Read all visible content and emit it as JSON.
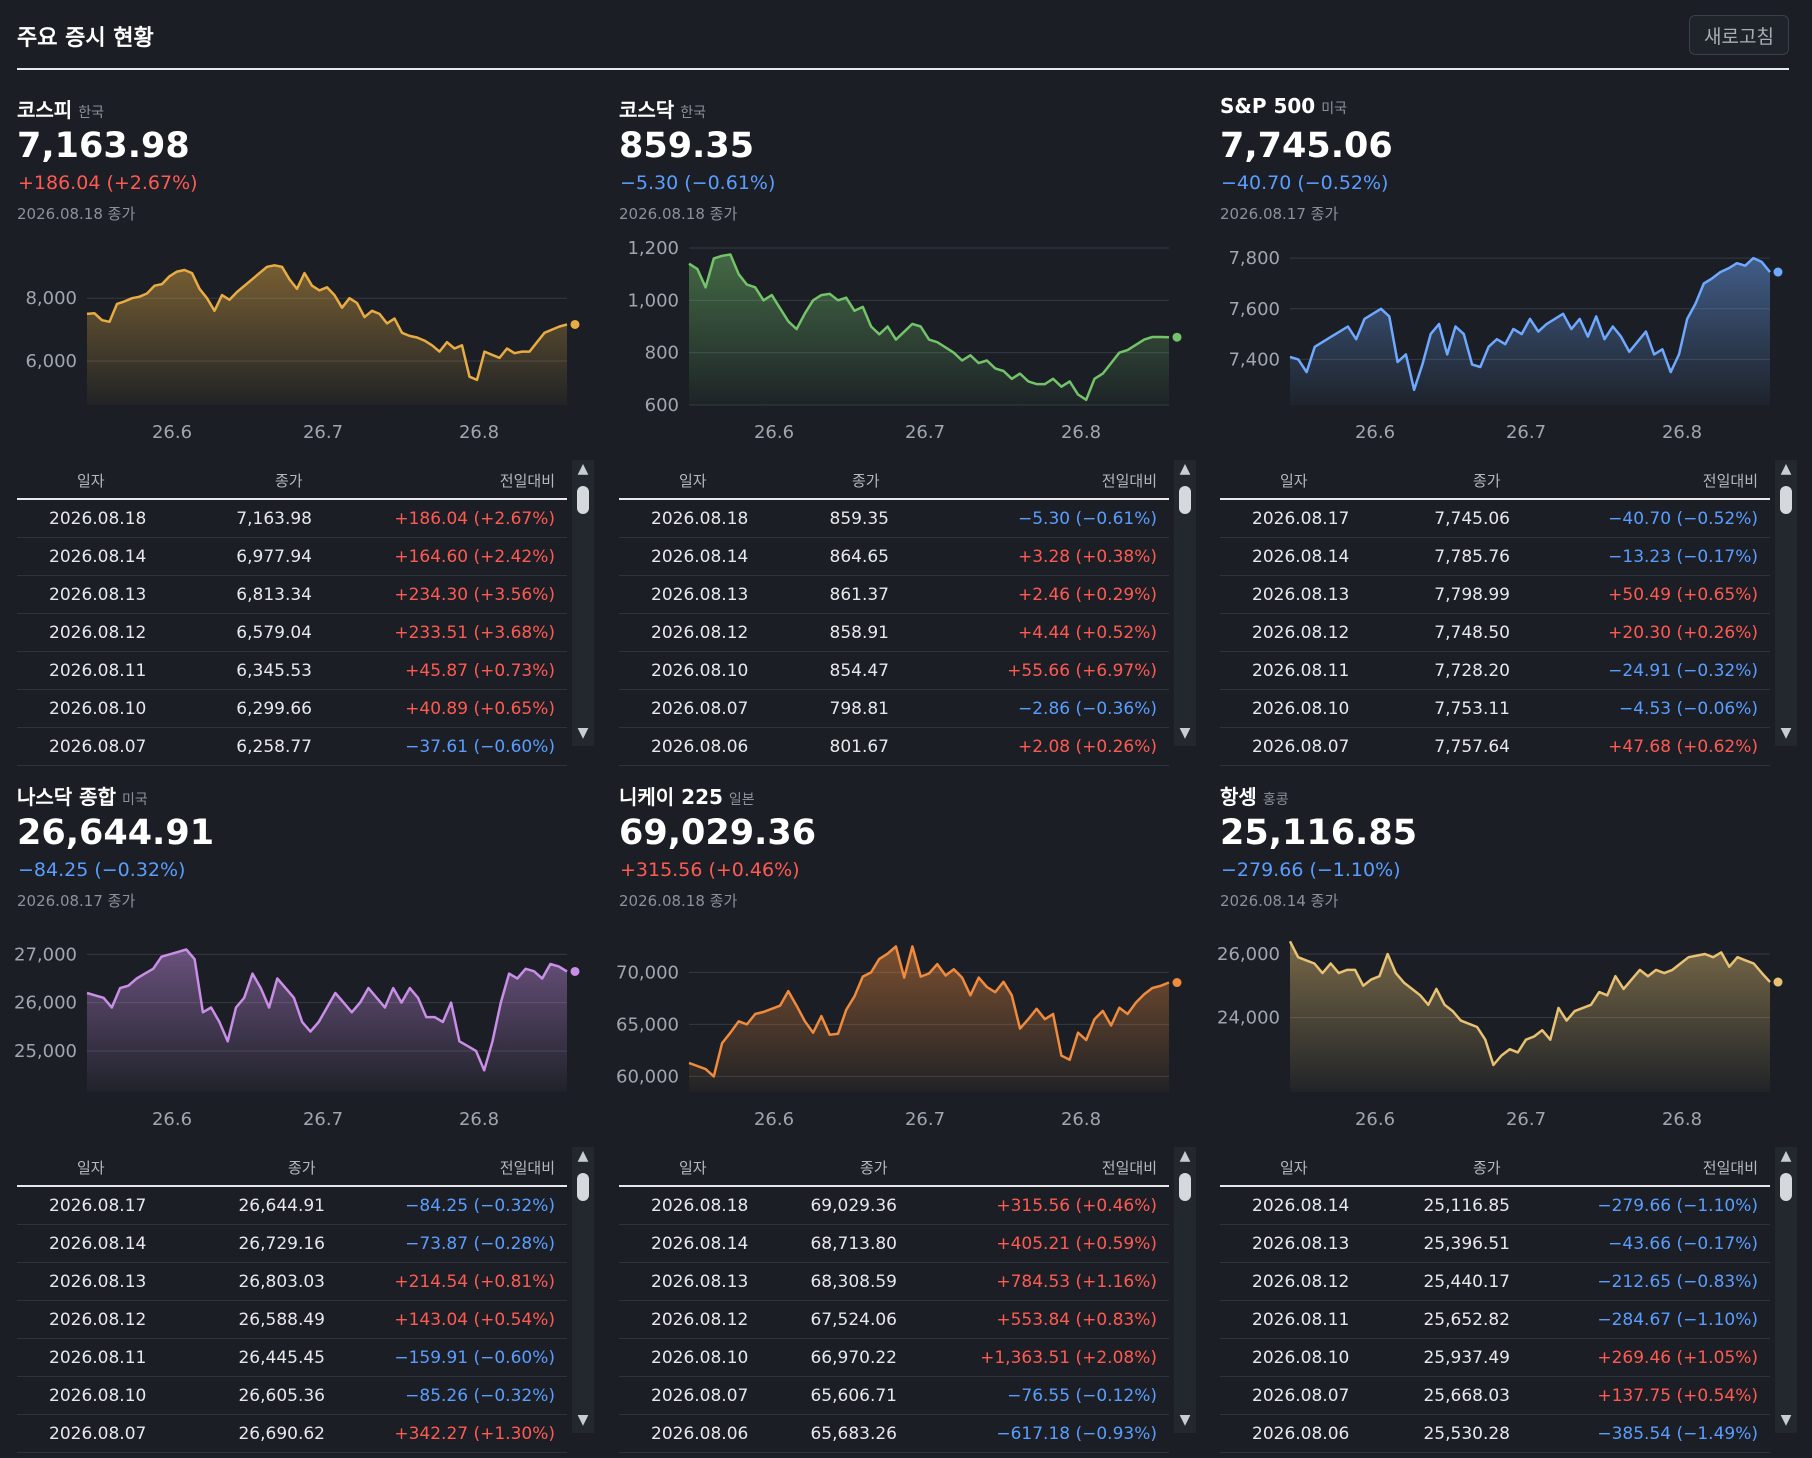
{
  "header": {
    "title": "주요 증시 현황",
    "refresh_label": "새로고침"
  },
  "table_headers": {
    "date": "일자",
    "close": "종가",
    "change": "전일대비"
  },
  "panels": [
    {
      "name": "코스피",
      "country": "한국",
      "value": "7,163.98",
      "change": "+186.04 (+2.67%)",
      "direction": "up",
      "date": "2026.08.18 종가",
      "color": "#e8ac42",
      "chart": {
        "y_range": [
          4600,
          9600
        ],
        "y_ticks": [
          6000,
          8000
        ],
        "y_tick_labels": [
          "6,000",
          "8,000"
        ],
        "x_ticks": [
          "26.6",
          "26.7",
          "26.8"
        ],
        "values": [
          7500,
          7520,
          7300,
          7250,
          7820,
          7900,
          8000,
          8050,
          8150,
          8400,
          8450,
          8700,
          8850,
          8900,
          8800,
          8300,
          8000,
          7600,
          8100,
          7950,
          8200,
          8400,
          8600,
          8800,
          9000,
          9050,
          9000,
          8600,
          8300,
          8800,
          8400,
          8250,
          8350,
          8100,
          7700,
          8000,
          7850,
          7400,
          7600,
          7500,
          7200,
          7350,
          6900,
          6800,
          6750,
          6650,
          6500,
          6300,
          6600,
          6400,
          6500,
          5500,
          5400,
          6300,
          6200,
          6100,
          6400,
          6250,
          6300,
          6300,
          6600,
          6900,
          7000,
          7100,
          7164
        ]
      },
      "rows": [
        {
          "date": "2026.08.18",
          "close": "7,163.98",
          "change": "+186.04 (+2.67%)",
          "dir": "up"
        },
        {
          "date": "2026.08.14",
          "close": "6,977.94",
          "change": "+164.60 (+2.42%)",
          "dir": "up"
        },
        {
          "date": "2026.08.13",
          "close": "6,813.34",
          "change": "+234.30 (+3.56%)",
          "dir": "up"
        },
        {
          "date": "2026.08.12",
          "close": "6,579.04",
          "change": "+233.51 (+3.68%)",
          "dir": "up"
        },
        {
          "date": "2026.08.11",
          "close": "6,345.53",
          "change": "+45.87 (+0.73%)",
          "dir": "up"
        },
        {
          "date": "2026.08.10",
          "close": "6,299.66",
          "change": "+40.89 (+0.65%)",
          "dir": "up"
        },
        {
          "date": "2026.08.07",
          "close": "6,258.77",
          "change": "−37.61 (−0.60%)",
          "dir": "down"
        }
      ]
    },
    {
      "name": "코스닥",
      "country": "한국",
      "value": "859.35",
      "change": "−5.30 (−0.61%)",
      "direction": "down",
      "date": "2026.08.18 종가",
      "color": "#74c36a",
      "chart": {
        "y_range": [
          600,
          1200
        ],
        "y_ticks": [
          600,
          800,
          1000,
          1200
        ],
        "y_tick_labels": [
          "600",
          "800",
          "1,000",
          "1,200"
        ],
        "x_ticks": [
          "26.6",
          "26.7",
          "26.8"
        ],
        "values": [
          1140,
          1120,
          1050,
          1160,
          1170,
          1175,
          1100,
          1060,
          1050,
          1000,
          1020,
          970,
          920,
          890,
          950,
          1000,
          1020,
          1025,
          1000,
          1010,
          960,
          975,
          900,
          870,
          900,
          850,
          880,
          910,
          900,
          850,
          840,
          820,
          800,
          770,
          790,
          760,
          770,
          740,
          730,
          700,
          720,
          690,
          680,
          680,
          700,
          670,
          690,
          640,
          620,
          700,
          720,
          760,
          800,
          810,
          830,
          850,
          860,
          860,
          859
        ]
      },
      "rows": [
        {
          "date": "2026.08.18",
          "close": "859.35",
          "change": "−5.30 (−0.61%)",
          "dir": "down"
        },
        {
          "date": "2026.08.14",
          "close": "864.65",
          "change": "+3.28 (+0.38%)",
          "dir": "up"
        },
        {
          "date": "2026.08.13",
          "close": "861.37",
          "change": "+2.46 (+0.29%)",
          "dir": "up"
        },
        {
          "date": "2026.08.12",
          "close": "858.91",
          "change": "+4.44 (+0.52%)",
          "dir": "up"
        },
        {
          "date": "2026.08.10",
          "close": "854.47",
          "change": "+55.66 (+6.97%)",
          "dir": "up"
        },
        {
          "date": "2026.08.07",
          "close": "798.81",
          "change": "−2.86 (−0.36%)",
          "dir": "down"
        },
        {
          "date": "2026.08.06",
          "close": "801.67",
          "change": "+2.08 (+0.26%)",
          "dir": "up"
        }
      ]
    },
    {
      "name": "S&P 500",
      "country": "미국",
      "value": "7,745.06",
      "change": "−40.70 (−0.52%)",
      "direction": "down",
      "date": "2026.08.17 종가",
      "color": "#6fa8ff",
      "chart": {
        "y_range": [
          7220,
          7840
        ],
        "y_ticks": [
          7400,
          7600,
          7800
        ],
        "y_tick_labels": [
          "7,400",
          "7,600",
          "7,800"
        ],
        "x_ticks": [
          "26.6",
          "26.7",
          "26.8"
        ],
        "values": [
          7410,
          7400,
          7350,
          7450,
          7470,
          7490,
          7510,
          7530,
          7480,
          7560,
          7580,
          7600,
          7570,
          7390,
          7420,
          7280,
          7380,
          7500,
          7540,
          7420,
          7530,
          7500,
          7380,
          7370,
          7450,
          7480,
          7460,
          7520,
          7500,
          7560,
          7510,
          7540,
          7560,
          7580,
          7520,
          7560,
          7490,
          7570,
          7480,
          7530,
          7490,
          7430,
          7470,
          7510,
          7420,
          7440,
          7350,
          7420,
          7560,
          7620,
          7700,
          7720,
          7745,
          7760,
          7780,
          7770,
          7800,
          7785,
          7745
        ]
      },
      "rows": [
        {
          "date": "2026.08.17",
          "close": "7,745.06",
          "change": "−40.70 (−0.52%)",
          "dir": "down"
        },
        {
          "date": "2026.08.14",
          "close": "7,785.76",
          "change": "−13.23 (−0.17%)",
          "dir": "down"
        },
        {
          "date": "2026.08.13",
          "close": "7,798.99",
          "change": "+50.49 (+0.65%)",
          "dir": "up"
        },
        {
          "date": "2026.08.12",
          "close": "7,748.50",
          "change": "+20.30 (+0.26%)",
          "dir": "up"
        },
        {
          "date": "2026.08.11",
          "close": "7,728.20",
          "change": "−24.91 (−0.32%)",
          "dir": "down"
        },
        {
          "date": "2026.08.10",
          "close": "7,753.11",
          "change": "−4.53 (−0.06%)",
          "dir": "down"
        },
        {
          "date": "2026.08.07",
          "close": "7,757.64",
          "change": "+47.68 (+0.62%)",
          "dir": "up"
        }
      ]
    },
    {
      "name": "나스닥 종합",
      "country": "미국",
      "value": "26,644.91",
      "change": "−84.25 (−0.32%)",
      "direction": "down",
      "date": "2026.08.17 종가",
      "color": "#c98ee6",
      "chart": {
        "y_range": [
          24150,
          27400
        ],
        "y_ticks": [
          25000,
          26000,
          27000
        ],
        "y_tick_labels": [
          "25,000",
          "26,000",
          "27,000"
        ],
        "x_ticks": [
          "26.6",
          "26.7",
          "26.8"
        ],
        "values": [
          26200,
          26150,
          26100,
          25900,
          26300,
          26350,
          26500,
          26600,
          26700,
          26950,
          27000,
          27050,
          27100,
          26900,
          25800,
          25900,
          25600,
          25200,
          25900,
          26100,
          26600,
          26300,
          25900,
          26500,
          26300,
          26100,
          25600,
          25400,
          25600,
          25900,
          26200,
          26000,
          25800,
          26000,
          26300,
          26100,
          25900,
          26300,
          26000,
          26300,
          26100,
          25700,
          25700,
          25600,
          26000,
          25200,
          25100,
          25000,
          24600,
          25200,
          26000,
          26600,
          26500,
          26700,
          26650,
          26500,
          26800,
          26750,
          26645
        ]
      },
      "rows": [
        {
          "date": "2026.08.17",
          "close": "26,644.91",
          "change": "−84.25 (−0.32%)",
          "dir": "down"
        },
        {
          "date": "2026.08.14",
          "close": "26,729.16",
          "change": "−73.87 (−0.28%)",
          "dir": "down"
        },
        {
          "date": "2026.08.13",
          "close": "26,803.03",
          "change": "+214.54 (+0.81%)",
          "dir": "up"
        },
        {
          "date": "2026.08.12",
          "close": "26,588.49",
          "change": "+143.04 (+0.54%)",
          "dir": "up"
        },
        {
          "date": "2026.08.11",
          "close": "26,445.45",
          "change": "−159.91 (−0.60%)",
          "dir": "down"
        },
        {
          "date": "2026.08.10",
          "close": "26,605.36",
          "change": "−85.26 (−0.32%)",
          "dir": "down"
        },
        {
          "date": "2026.08.07",
          "close": "26,690.62",
          "change": "+342.27 (+1.30%)",
          "dir": "up"
        }
      ]
    },
    {
      "name": "니케이 225",
      "country": "일본",
      "value": "69,029.36",
      "change": "+315.56 (+0.46%)",
      "direction": "up",
      "date": "2026.08.18 종가",
      "color": "#f08a3c",
      "chart": {
        "y_range": [
          58500,
          73600
        ],
        "y_ticks": [
          60000,
          65000,
          70000
        ],
        "y_tick_labels": [
          "60,000",
          "65,000",
          "70,000"
        ],
        "x_ticks": [
          "26.6",
          "26.7",
          "26.8"
        ],
        "values": [
          61300,
          61000,
          60700,
          60000,
          63200,
          64200,
          65300,
          65000,
          66000,
          66200,
          66500,
          66800,
          68200,
          66800,
          65300,
          64200,
          65800,
          64000,
          64100,
          66400,
          67700,
          69600,
          70000,
          71300,
          71800,
          72500,
          69500,
          72500,
          69600,
          69900,
          70800,
          69700,
          70300,
          69500,
          67800,
          69500,
          68600,
          68100,
          69100,
          67800,
          64600,
          65500,
          66500,
          65500,
          66000,
          62000,
          61600,
          64200,
          63500,
          65500,
          66300,
          64900,
          66600,
          66000,
          67100,
          67900,
          68500,
          68714,
          69029
        ]
      },
      "rows": [
        {
          "date": "2026.08.18",
          "close": "69,029.36",
          "change": "+315.56 (+0.46%)",
          "dir": "up"
        },
        {
          "date": "2026.08.14",
          "close": "68,713.80",
          "change": "+405.21 (+0.59%)",
          "dir": "up"
        },
        {
          "date": "2026.08.13",
          "close": "68,308.59",
          "change": "+784.53 (+1.16%)",
          "dir": "up"
        },
        {
          "date": "2026.08.12",
          "close": "67,524.06",
          "change": "+553.84 (+0.83%)",
          "dir": "up"
        },
        {
          "date": "2026.08.10",
          "close": "66,970.22",
          "change": "+1,363.51 (+2.08%)",
          "dir": "up"
        },
        {
          "date": "2026.08.07",
          "close": "65,606.71",
          "change": "−76.55 (−0.12%)",
          "dir": "down"
        },
        {
          "date": "2026.08.06",
          "close": "65,683.26",
          "change": "−617.18 (−0.93%)",
          "dir": "down"
        }
      ]
    },
    {
      "name": "항셍",
      "country": "홍콩",
      "value": "25,116.85",
      "change": "−279.66 (−1.10%)",
      "direction": "down",
      "date": "2026.08.14 종가",
      "color": "#e8c172",
      "chart": {
        "y_range": [
          21650,
          26600
        ],
        "y_ticks": [
          24000,
          26000
        ],
        "y_tick_labels": [
          "24,000",
          "26,000"
        ],
        "x_ticks": [
          "26.6",
          "26.7",
          "26.8"
        ],
        "values": [
          26400,
          25900,
          25800,
          25700,
          25400,
          25700,
          25400,
          25500,
          25500,
          25000,
          25200,
          25300,
          26000,
          25400,
          25100,
          24900,
          24700,
          24400,
          24900,
          24400,
          24200,
          23900,
          23800,
          23700,
          23300,
          22500,
          22800,
          23000,
          22900,
          23300,
          23400,
          23600,
          23300,
          24300,
          23900,
          24200,
          24300,
          24400,
          24800,
          24700,
          25300,
          24900,
          25200,
          25500,
          25300,
          25500,
          25400,
          25500,
          25700,
          25900,
          25950,
          26000,
          25900,
          26050,
          25600,
          25900,
          25800,
          25700,
          25400,
          25117
        ]
      },
      "rows": [
        {
          "date": "2026.08.14",
          "close": "25,116.85",
          "change": "−279.66 (−1.10%)",
          "dir": "down"
        },
        {
          "date": "2026.08.13",
          "close": "25,396.51",
          "change": "−43.66 (−0.17%)",
          "dir": "down"
        },
        {
          "date": "2026.08.12",
          "close": "25,440.17",
          "change": "−212.65 (−0.83%)",
          "dir": "down"
        },
        {
          "date": "2026.08.11",
          "close": "25,652.82",
          "change": "−284.67 (−1.10%)",
          "dir": "down"
        },
        {
          "date": "2026.08.10",
          "close": "25,937.49",
          "change": "+269.46 (+1.05%)",
          "dir": "up"
        },
        {
          "date": "2026.08.07",
          "close": "25,668.03",
          "change": "+137.75 (+0.54%)",
          "dir": "up"
        },
        {
          "date": "2026.08.06",
          "close": "25,530.28",
          "change": "−385.54 (−1.49%)",
          "dir": "down"
        }
      ]
    }
  ]
}
